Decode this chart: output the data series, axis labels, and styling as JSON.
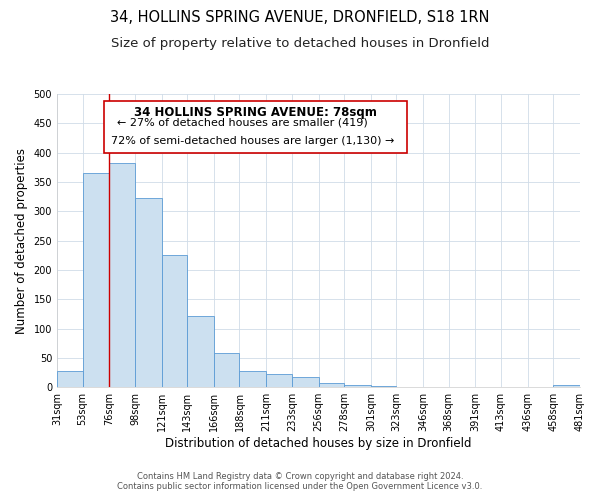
{
  "title": "34, HOLLINS SPRING AVENUE, DRONFIELD, S18 1RN",
  "subtitle": "Size of property relative to detached houses in Dronfield",
  "xlabel": "Distribution of detached houses by size in Dronfield",
  "ylabel": "Number of detached properties",
  "bar_edges": [
    31,
    53,
    76,
    98,
    121,
    143,
    166,
    188,
    211,
    233,
    256,
    278,
    301,
    323,
    346,
    368,
    391,
    413,
    436,
    458,
    481
  ],
  "bar_heights": [
    28,
    365,
    383,
    323,
    226,
    121,
    58,
    28,
    23,
    18,
    8,
    3,
    2,
    1,
    1,
    1,
    0,
    0,
    0,
    3
  ],
  "bar_color": "#cce0f0",
  "bar_edge_color": "#5b9bd5",
  "vline_x": 76,
  "vline_color": "#cc0000",
  "ylim": [
    0,
    500
  ],
  "yticks": [
    0,
    50,
    100,
    150,
    200,
    250,
    300,
    350,
    400,
    450,
    500
  ],
  "annotation_box_text": [
    "34 HOLLINS SPRING AVENUE: 78sqm",
    "← 27% of detached houses are smaller (419)",
    "72% of semi-detached houses are larger (1,130) →"
  ],
  "footer_line1": "Contains HM Land Registry data © Crown copyright and database right 2024.",
  "footer_line2": "Contains public sector information licensed under the Open Government Licence v3.0.",
  "tick_labels": [
    "31sqm",
    "53sqm",
    "76sqm",
    "98sqm",
    "121sqm",
    "143sqm",
    "166sqm",
    "188sqm",
    "211sqm",
    "233sqm",
    "256sqm",
    "278sqm",
    "301sqm",
    "323sqm",
    "346sqm",
    "368sqm",
    "391sqm",
    "413sqm",
    "436sqm",
    "458sqm",
    "481sqm"
  ],
  "background_color": "#ffffff",
  "grid_color": "#d0dce8",
  "title_fontsize": 10.5,
  "subtitle_fontsize": 9.5,
  "axis_label_fontsize": 8.5,
  "tick_fontsize": 7,
  "annotation_fontsize": 8.5,
  "footer_fontsize": 6
}
